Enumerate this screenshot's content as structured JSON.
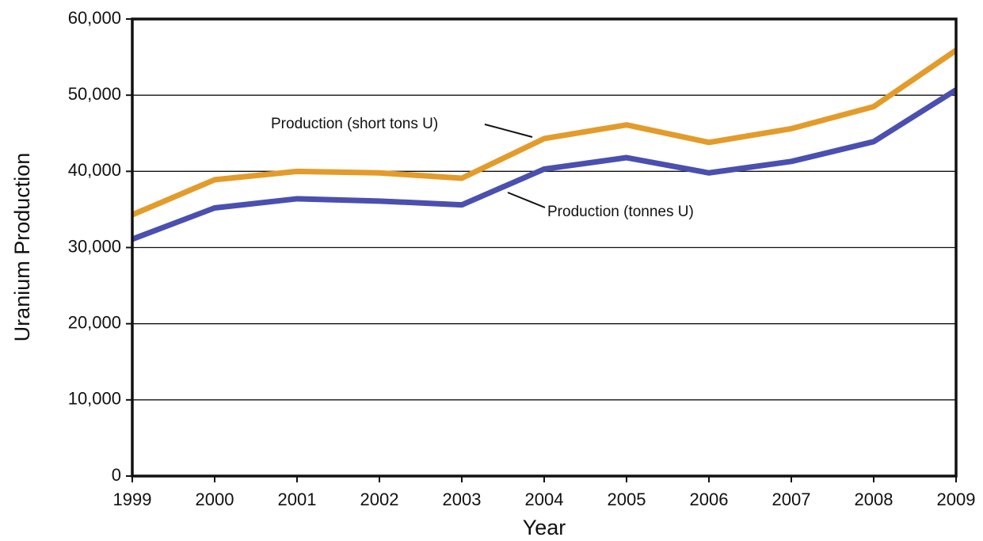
{
  "chart_data": {
    "type": "line",
    "x_label": "Year",
    "y_label": "Uranium Production",
    "x": [
      1999,
      2000,
      2001,
      2002,
      2003,
      2004,
      2005,
      2006,
      2007,
      2008,
      2009
    ],
    "series": [
      {
        "name": "Production (short tons U)",
        "color": "#e39b2a",
        "values": [
          34300,
          38900,
          40000,
          39800,
          39100,
          44300,
          46100,
          43800,
          45600,
          48500,
          55900
        ]
      },
      {
        "name": "Production (tonnes U)",
        "color": "#4a4fb0",
        "values": [
          31100,
          35200,
          36400,
          36100,
          35600,
          40300,
          41800,
          39800,
          41300,
          43900,
          50700
        ]
      }
    ],
    "xlim": [
      1999,
      2009
    ],
    "xticks": [
      1999,
      2000,
      2001,
      2002,
      2003,
      2004,
      2005,
      2006,
      2007,
      2008,
      2009
    ],
    "ylim": [
      0,
      60000
    ],
    "yticks": [
      0,
      {
        "value": 10000,
        "label": "10,000"
      },
      {
        "value": 20000,
        "label": "20,000"
      },
      {
        "value": 30000,
        "label": "30,000"
      },
      {
        "value": 40000,
        "label": "40,000"
      },
      {
        "value": 50000,
        "label": "50,000"
      },
      {
        "value": 60000,
        "label": "60,000"
      }
    ],
    "grid": true
  }
}
